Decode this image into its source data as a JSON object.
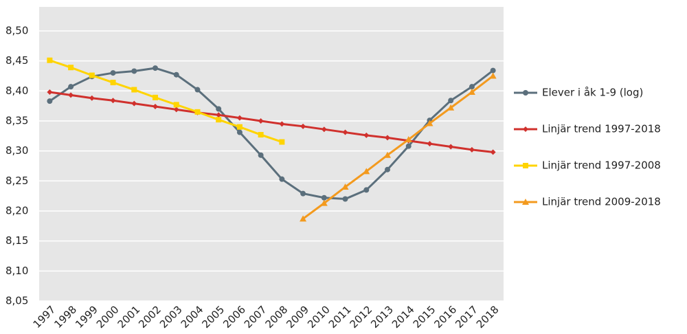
{
  "chart_data": {
    "type": "line",
    "categories": [
      "1997",
      "1998",
      "1999",
      "2000",
      "2001",
      "2002",
      "2003",
      "2004",
      "2005",
      "2006",
      "2007",
      "2008",
      "2009",
      "2010",
      "2011",
      "2012",
      "2013",
      "2014",
      "2015",
      "2016",
      "2017",
      "2018"
    ],
    "series": [
      {
        "name": "Elever i åk 1-9 (log)",
        "color": "#5b6f7c",
        "marker": "circle",
        "values": [
          8.383,
          8.407,
          8.424,
          8.43,
          8.433,
          8.438,
          8.427,
          8.402,
          8.37,
          8.331,
          8.293,
          8.253,
          8.229,
          8.222,
          8.22,
          8.235,
          8.269,
          8.308,
          8.351,
          8.384,
          8.407,
          8.434
        ]
      },
      {
        "name": "Linjär trend 1997-2018",
        "color": "#d0312d",
        "marker": "diamond",
        "values": [
          8.398,
          8.393,
          8.388,
          8.384,
          8.379,
          8.374,
          8.369,
          8.364,
          8.36,
          8.355,
          8.35,
          8.345,
          8.341,
          8.336,
          8.331,
          8.326,
          8.322,
          8.317,
          8.312,
          8.307,
          8.302,
          8.298
        ]
      },
      {
        "name": "Linjär trend 1997-2008",
        "color": "#ffd400",
        "marker": "square",
        "values": [
          8.451,
          8.439,
          8.426,
          8.414,
          8.402,
          8.389,
          8.377,
          8.365,
          8.352,
          8.34,
          8.327,
          8.315,
          null,
          null,
          null,
          null,
          null,
          null,
          null,
          null,
          null,
          null
        ]
      },
      {
        "name": "Linjär trend 2009-2018",
        "color": "#f39a1e",
        "marker": "triangle",
        "values": [
          null,
          null,
          null,
          null,
          null,
          null,
          null,
          null,
          null,
          null,
          null,
          null,
          8.187,
          8.213,
          8.24,
          8.266,
          8.293,
          8.319,
          8.346,
          8.372,
          8.398,
          8.425
        ]
      }
    ],
    "ylim": [
      8.05,
      8.54
    ],
    "yticks": [
      {
        "value": 8.05,
        "label": "8,05"
      },
      {
        "value": 8.1,
        "label": "8,10"
      },
      {
        "value": 8.15,
        "label": "8,15"
      },
      {
        "value": 8.2,
        "label": "8,20"
      },
      {
        "value": 8.25,
        "label": "8,25"
      },
      {
        "value": 8.3,
        "label": "8,30"
      },
      {
        "value": 8.35,
        "label": "8,35"
      },
      {
        "value": 8.4,
        "label": "8,40"
      },
      {
        "value": 8.45,
        "label": "8,45"
      },
      {
        "value": 8.5,
        "label": "8,50"
      }
    ],
    "grid": true,
    "legend": "right"
  }
}
